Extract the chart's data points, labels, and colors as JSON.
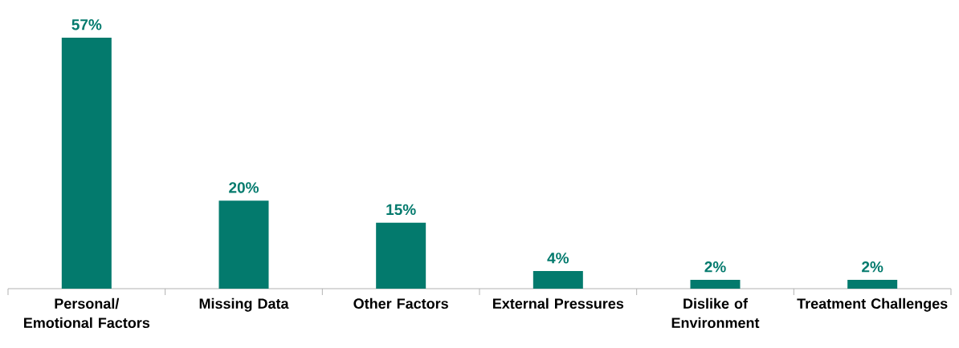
{
  "chart_data": {
    "type": "bar",
    "categories": [
      "Personal/ Emotional Factors",
      "Missing Data",
      "Other Factors",
      "External Pressures",
      "Dislike of Environment",
      "Treatment Challenges"
    ],
    "values": [
      57,
      20,
      15,
      4,
      2,
      2
    ],
    "value_labels": [
      "57%",
      "20%",
      "15%",
      "4%",
      "2%",
      "2%"
    ],
    "color": "#037a6d"
  }
}
